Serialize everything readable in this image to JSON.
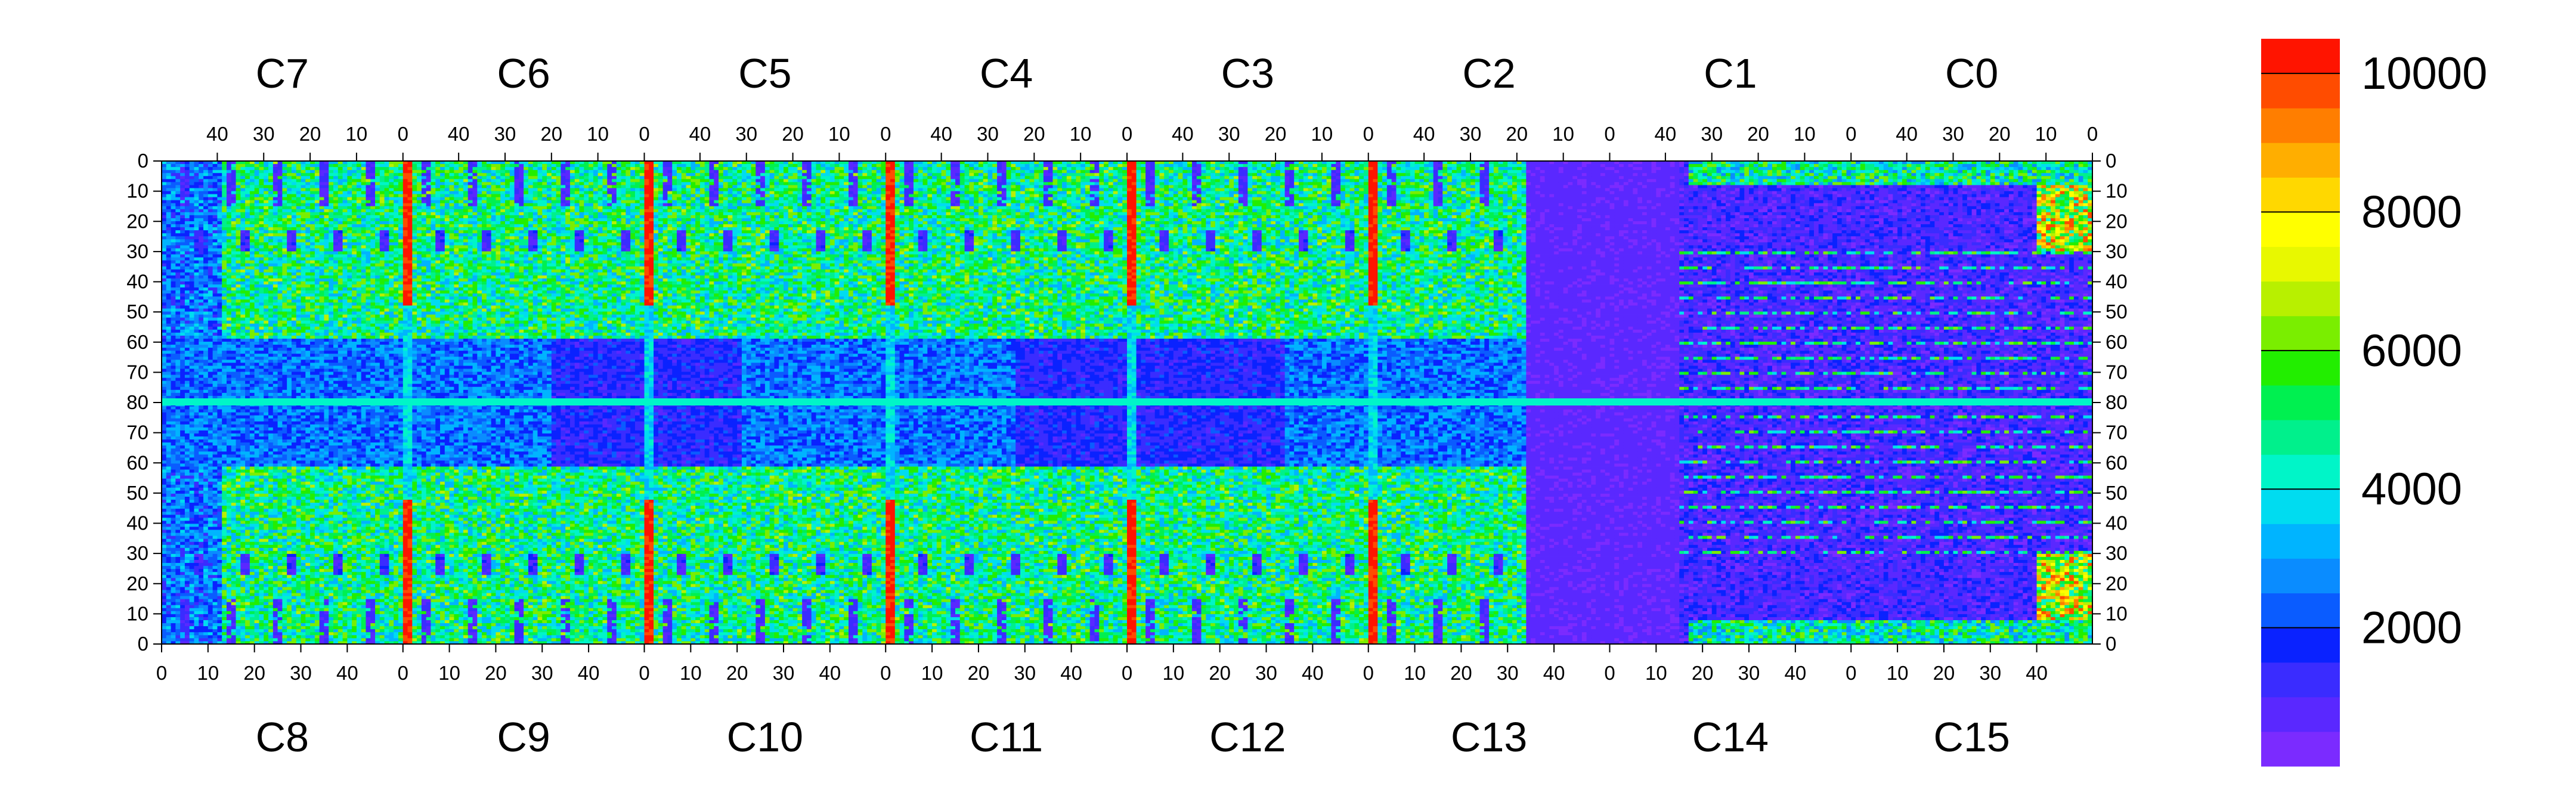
{
  "chart_data": {
    "type": "heatmap",
    "title": "",
    "top_chip_labels": [
      "C7",
      "C6",
      "C5",
      "C4",
      "C3",
      "C2",
      "C1",
      "C0"
    ],
    "bottom_chip_labels": [
      "C8",
      "C9",
      "C10",
      "C11",
      "C12",
      "C13",
      "C14",
      "C15"
    ],
    "top_axis_ticks": [
      "40",
      "30",
      "20",
      "10",
      "0"
    ],
    "bottom_axis_ticks": [
      "0",
      "10",
      "20",
      "30",
      "40"
    ],
    "y_axis_ticks": [
      "0",
      "10",
      "20",
      "30",
      "40",
      "50",
      "60",
      "70",
      "80",
      "70",
      "60",
      "50",
      "40",
      "30",
      "20",
      "10",
      "0"
    ],
    "chip_columns": 52,
    "chip_rows_per_half": 80,
    "colorbar": {
      "min": 0,
      "max": 10500,
      "tick_values": [
        2000,
        4000,
        6000,
        8000,
        10000
      ],
      "tick_labels": [
        "2000",
        "4000",
        "6000",
        "8000",
        "10000"
      ],
      "colors": [
        "#7b2bff",
        "#5a28ff",
        "#3a2cff",
        "#0a22ff",
        "#0a5cff",
        "#0a8cff",
        "#00b4ff",
        "#00dcf0",
        "#00f5c8",
        "#00f08c",
        "#00f050",
        "#22ee00",
        "#7aee00",
        "#b8f000",
        "#e8f800",
        "#ffff00",
        "#ffd800",
        "#ffae00",
        "#ff7e00",
        "#ff4c00",
        "#ff1400"
      ]
    },
    "features": {
      "hot_column_value": 9800,
      "background_value": 4800,
      "low_block_value": 900,
      "dead_region_value": 400
    }
  }
}
